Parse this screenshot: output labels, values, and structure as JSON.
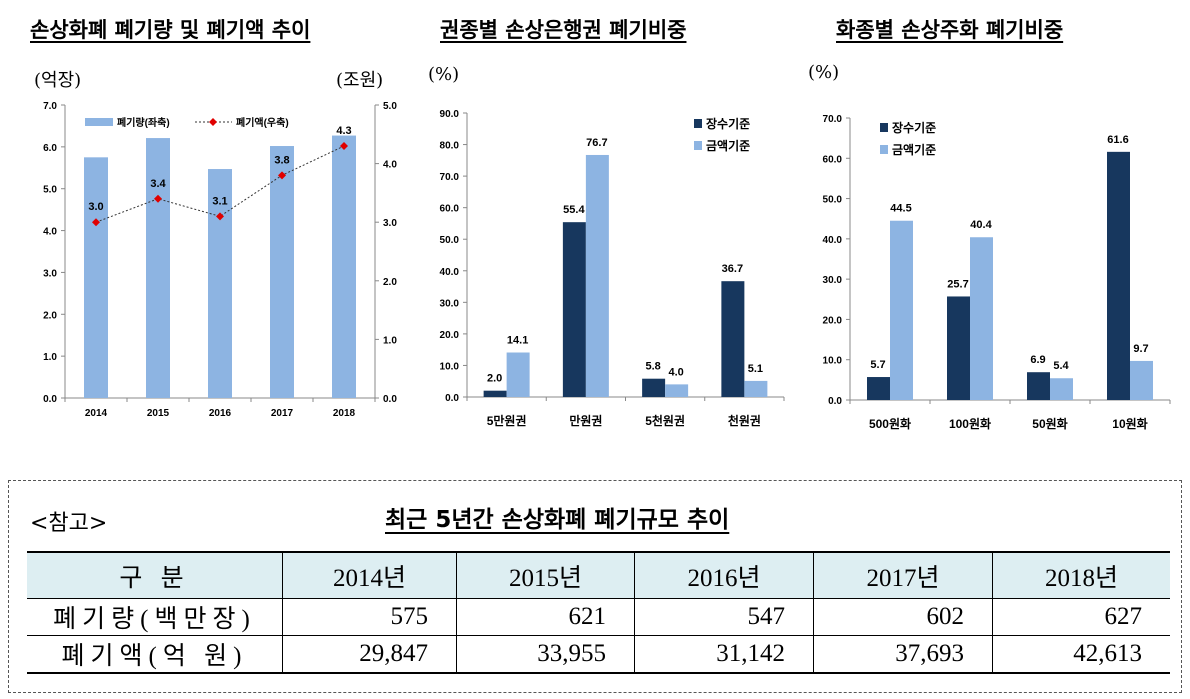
{
  "chart_data": [
    {
      "type": "bar+line",
      "title": "손상화폐 폐기량 및 폐기액 추이",
      "left_unit": "(억장)",
      "right_unit": "(조원)",
      "categories": [
        "2014",
        "2015",
        "2016",
        "2017",
        "2018"
      ],
      "series": [
        {
          "name": "폐기량(좌축)",
          "type": "bar",
          "axis": "left",
          "values": [
            5.75,
            6.21,
            5.47,
            6.02,
            6.27
          ],
          "color": "#8db4e2"
        },
        {
          "name": "폐기액(우축)",
          "type": "line",
          "axis": "right",
          "values": [
            3.0,
            3.4,
            3.1,
            3.8,
            4.3
          ],
          "labels": [
            "3.0",
            "3.4",
            "3.1",
            "3.8",
            "4.3"
          ],
          "color": "#e00000"
        }
      ],
      "ylim_left": [
        0,
        7
      ],
      "ylim_right": [
        0,
        5
      ],
      "yticks_left": [
        "0.0",
        "1.0",
        "2.0",
        "3.0",
        "4.0",
        "5.0",
        "6.0",
        "7.0"
      ],
      "yticks_right": [
        "0.0",
        "1.0",
        "2.0",
        "3.0",
        "4.0",
        "5.0"
      ],
      "legend": "top",
      "grid": false
    },
    {
      "type": "bar",
      "title": "권종별 손상은행권 폐기비중",
      "ylabel": "(%)",
      "categories": [
        "5만원권",
        "만원권",
        "5천원권",
        "천원권"
      ],
      "series": [
        {
          "name": "장수기준",
          "values": [
            2.0,
            55.4,
            5.8,
            36.7
          ],
          "color": "#17375e"
        },
        {
          "name": "금액기준",
          "values": [
            14.1,
            76.7,
            4.0,
            5.1
          ],
          "color": "#8db4e2"
        }
      ],
      "ylim": [
        0,
        90
      ],
      "yticks": [
        "0.0",
        "10.0",
        "20.0",
        "30.0",
        "40.0",
        "50.0",
        "60.0",
        "70.0",
        "80.0",
        "90.0"
      ],
      "legend": "top-right",
      "grid": false
    },
    {
      "type": "bar",
      "title": "화종별 손상주화 폐기비중",
      "ylabel": "(%)",
      "categories": [
        "500원화",
        "100원화",
        "50원화",
        "10원화"
      ],
      "series": [
        {
          "name": "장수기준",
          "values": [
            5.7,
            25.7,
            6.9,
            61.6
          ],
          "color": "#17375e"
        },
        {
          "name": "금액기준",
          "values": [
            44.5,
            40.4,
            5.4,
            9.7
          ],
          "color": "#8db4e2"
        }
      ],
      "ylim": [
        0,
        70
      ],
      "yticks": [
        "0.0",
        "10.0",
        "20.0",
        "30.0",
        "40.0",
        "50.0",
        "60.0",
        "70.0"
      ],
      "legend": "top-left",
      "grid": false
    }
  ],
  "table": {
    "label": "<참고>",
    "title": "최근 5년간 손상화폐 폐기규모 추이",
    "headers": [
      "구 분",
      "2014년",
      "2015년",
      "2016년",
      "2017년",
      "2018년"
    ],
    "rows": [
      [
        "폐기량(백만장)",
        "575",
        "621",
        "547",
        "602",
        "627"
      ],
      [
        "폐기액(억 원)",
        "29,847",
        "33,955",
        "31,142",
        "37,693",
        "42,613"
      ]
    ]
  }
}
